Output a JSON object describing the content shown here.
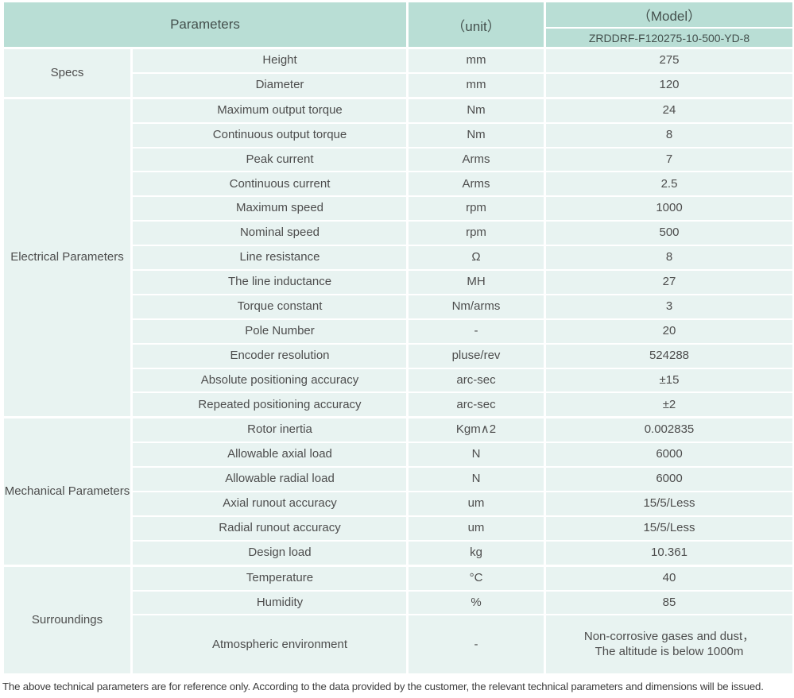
{
  "header": {
    "parameters_label": "Parameters",
    "unit_label": "（unit）",
    "model_label": "（Model）",
    "model_number": "ZRDDRF-F120275-10-500-YD-8"
  },
  "groups": [
    {
      "name": "Specs",
      "rows": [
        {
          "param": "Height",
          "unit": "mm",
          "value": "275"
        },
        {
          "param": "Diameter",
          "unit": "mm",
          "value": "120"
        }
      ]
    },
    {
      "name": "Electrical Parameters",
      "rows": [
        {
          "param": "Maximum output torque",
          "unit": "Nm",
          "value": "24"
        },
        {
          "param": "Continuous output torque",
          "unit": "Nm",
          "value": "8"
        },
        {
          "param": "Peak current",
          "unit": "Arms",
          "value": "7"
        },
        {
          "param": "Continuous current",
          "unit": "Arms",
          "value": "2.5"
        },
        {
          "param": "Maximum speed",
          "unit": "rpm",
          "value": "1000"
        },
        {
          "param": "Nominal speed",
          "unit": "rpm",
          "value": "500"
        },
        {
          "param": "Line resistance",
          "unit": "Ω",
          "value": "8"
        },
        {
          "param": "The line inductance",
          "unit": "MH",
          "value": "27"
        },
        {
          "param": "Torque constant",
          "unit": "Nm/arms",
          "value": "3"
        },
        {
          "param": "Pole Number",
          "unit": "-",
          "value": "20"
        },
        {
          "param": "Encoder resolution",
          "unit": "pluse/rev",
          "value": "524288"
        },
        {
          "param": "Absolute positioning accuracy",
          "unit": "arc-sec",
          "value": "±15"
        },
        {
          "param": "Repeated positioning accuracy",
          "unit": "arc-sec",
          "value": "±2"
        }
      ]
    },
    {
      "name": "Mechanical Parameters",
      "rows": [
        {
          "param": "Rotor inertia",
          "unit": "Kgm∧2",
          "value": "0.002835"
        },
        {
          "param": "Allowable axial load",
          "unit": "N",
          "value": "6000"
        },
        {
          "param": "Allowable radial load",
          "unit": "N",
          "value": "6000"
        },
        {
          "param": "Axial runout accuracy",
          "unit": "um",
          "value": "15/5/Less"
        },
        {
          "param": "Radial runout accuracy",
          "unit": "um",
          "value": "15/5/Less"
        },
        {
          "param": "Design load",
          "unit": "kg",
          "value": "10.361"
        }
      ]
    },
    {
      "name": "Surroundings",
      "rows": [
        {
          "param": "Temperature",
          "unit": "°C",
          "value": "40"
        },
        {
          "param": "Humidity",
          "unit": "%",
          "value": "85"
        },
        {
          "param": "Atmospheric environment",
          "unit": "-",
          "value": "Non-corrosive gases and dust，\nThe altitude is below 1000m"
        }
      ]
    }
  ],
  "footer_note": "The above technical parameters are for reference only. According to the data provided by the customer, the relevant technical parameters and dimensions will be issued.",
  "colors": {
    "header_bg": "#b9ded5",
    "row_bg": "#e8f3f1",
    "grid_line": "#ffffff",
    "text": "#4d4d4d"
  }
}
